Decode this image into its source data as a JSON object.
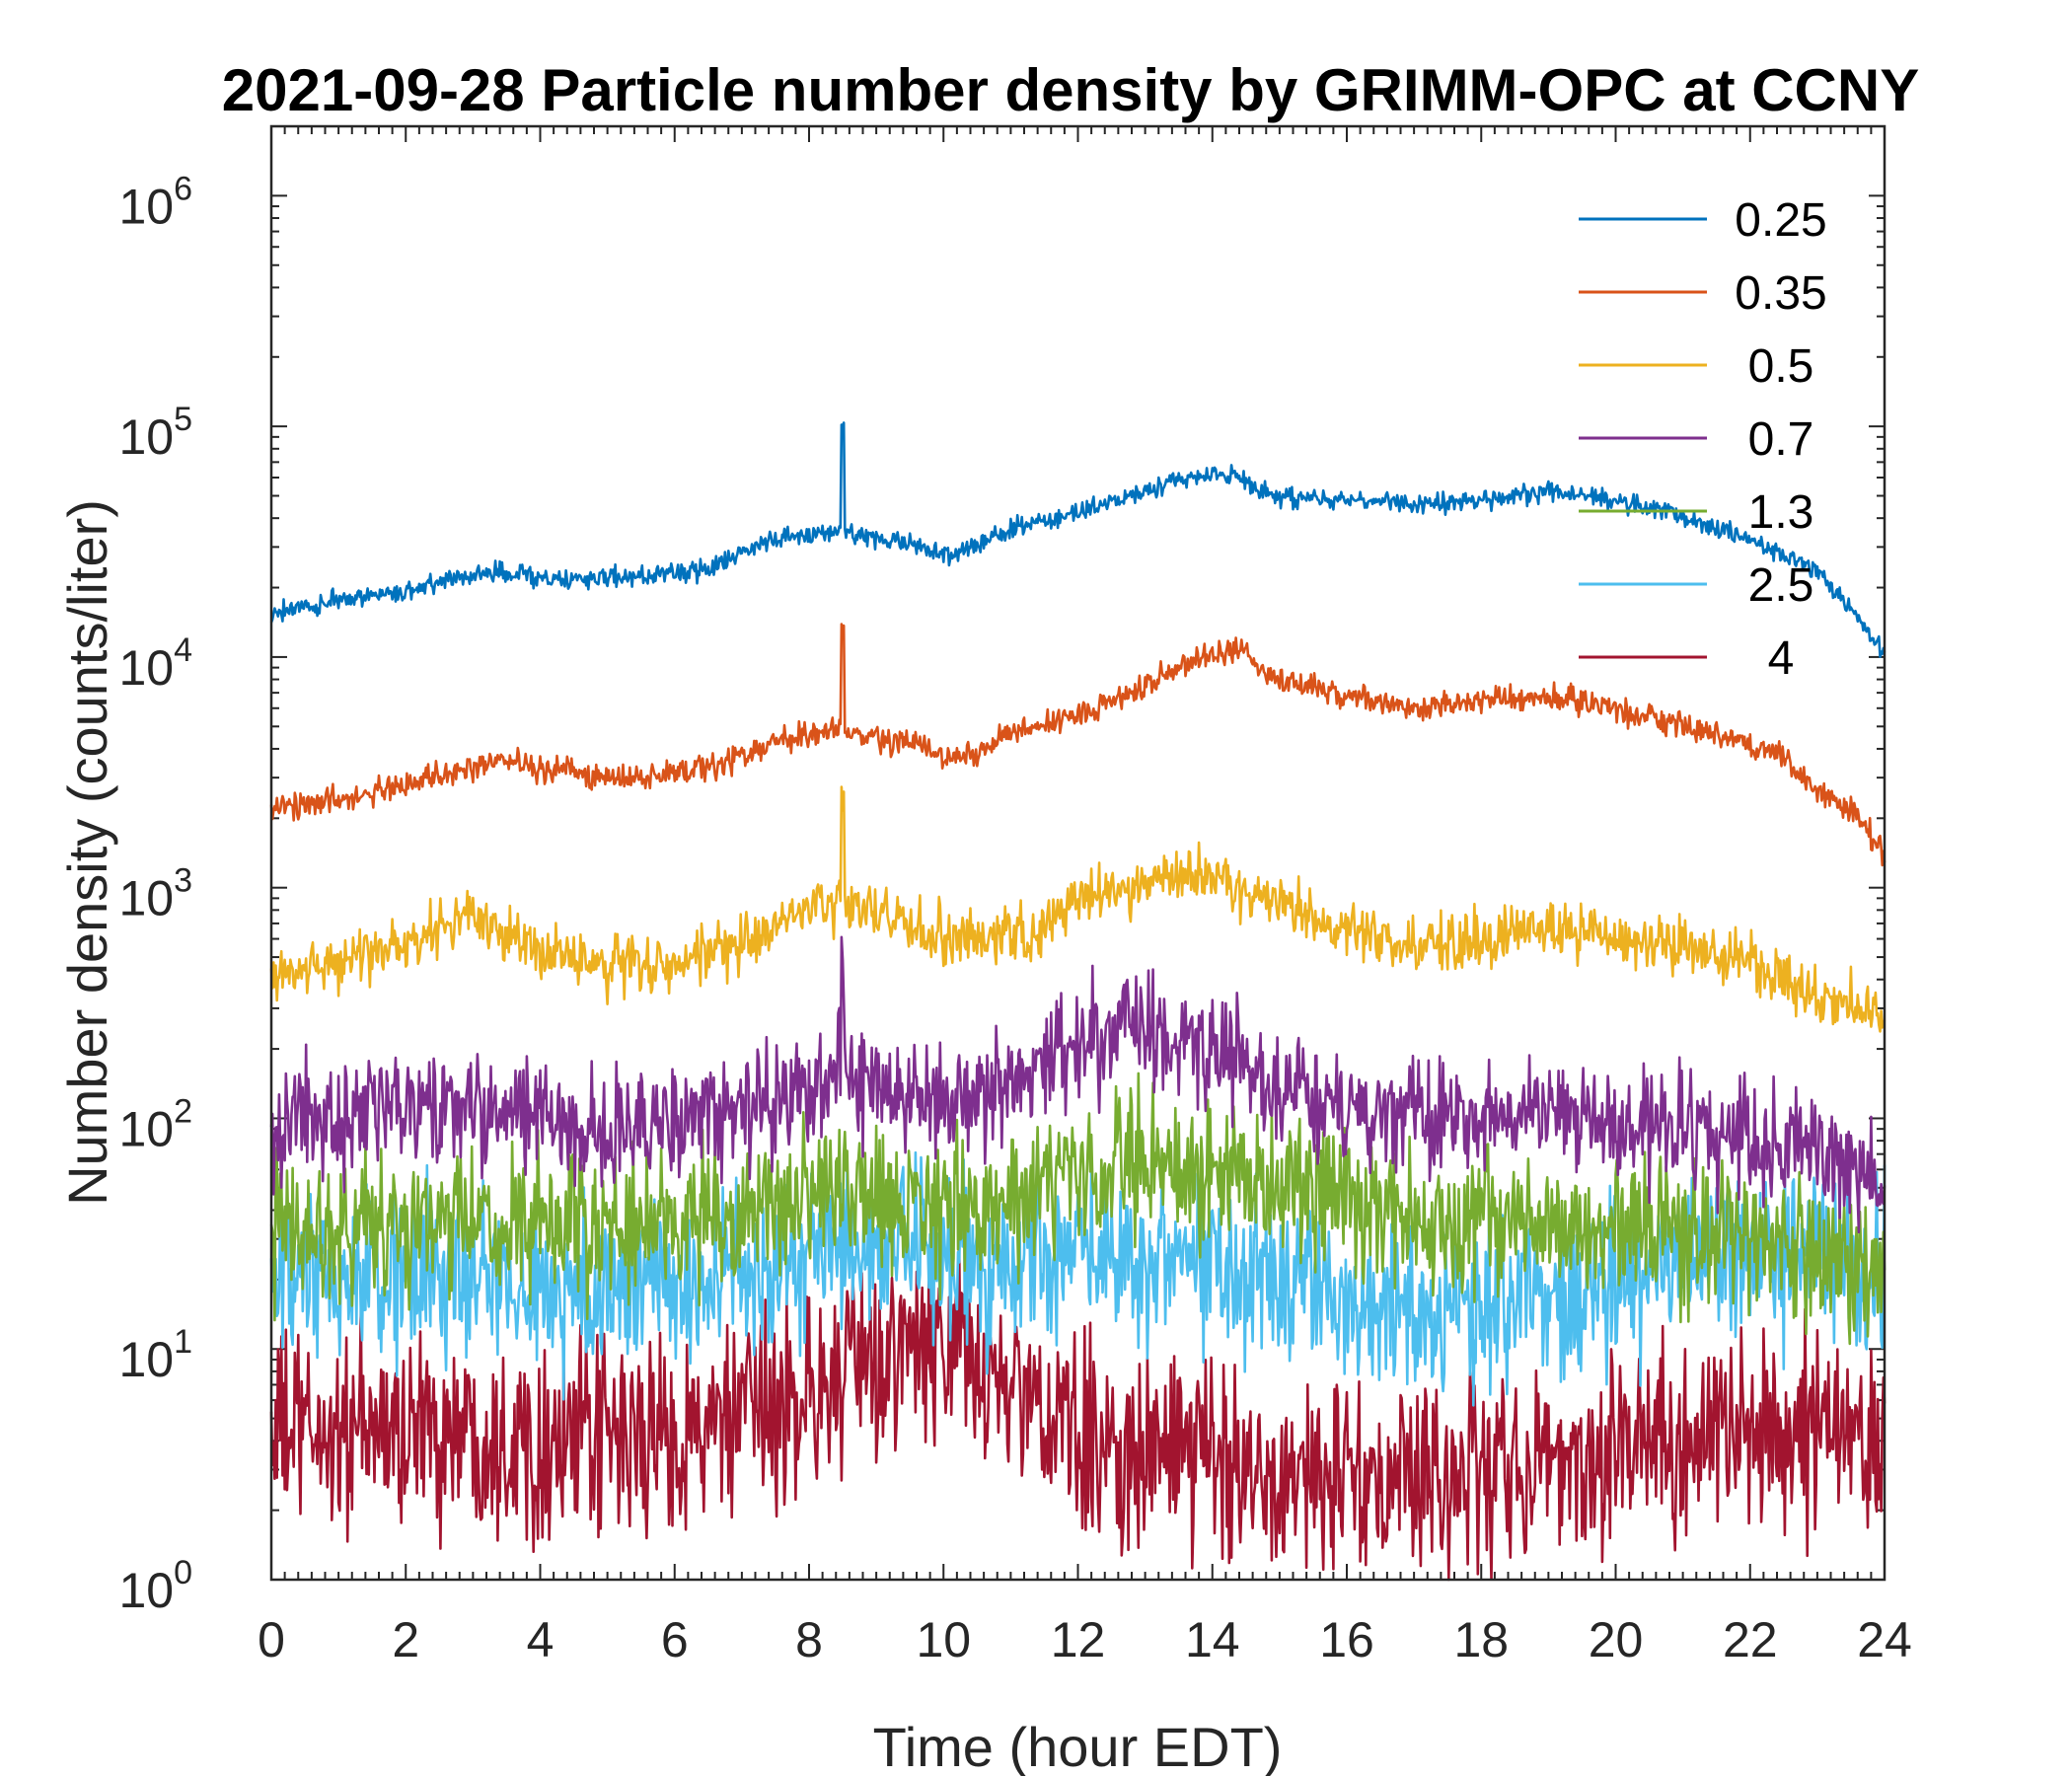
{
  "chart_data": {
    "type": "line",
    "title": "2021-09-28 Particle number density by GRIMM-OPC at CCNY",
    "xlabel": "Time (hour EDT)",
    "ylabel": "Number density (counts/liter)",
    "xlim": [
      0,
      24
    ],
    "ylim": [
      1,
      2000000
    ],
    "yscale": "log",
    "xticks": [
      0,
      2,
      4,
      6,
      8,
      10,
      12,
      14,
      16,
      18,
      20,
      22,
      24
    ],
    "yticks": [
      {
        "base": "10",
        "exp": "0",
        "value": 1
      },
      {
        "base": "10",
        "exp": "1",
        "value": 10
      },
      {
        "base": "10",
        "exp": "2",
        "value": 100
      },
      {
        "base": "10",
        "exp": "3",
        "value": 1000
      },
      {
        "base": "10",
        "exp": "4",
        "value": 10000
      },
      {
        "base": "10",
        "exp": "5",
        "value": 100000
      },
      {
        "base": "10",
        "exp": "6",
        "value": 1000000
      }
    ],
    "legend_position": "top-right",
    "series": [
      {
        "name": "0.25",
        "color": "#0072BD",
        "noise": 0.03,
        "x": [
          0,
          1,
          2,
          3,
          3.3,
          4,
          5,
          6,
          6.5,
          7,
          7.5,
          8,
          8.5,
          9,
          9.5,
          10,
          10.3,
          10.7,
          11,
          12,
          13,
          13.5,
          14,
          14.5,
          14.7,
          15,
          16,
          17,
          18,
          18.5,
          19,
          20,
          21,
          22,
          23,
          23.5,
          24
        ],
        "values": [
          15500,
          17500,
          19500,
          22500,
          24000,
          22000,
          22000,
          23000,
          24000,
          28000,
          32000,
          34000,
          35000,
          33000,
          31000,
          28000,
          29000,
          33000,
          36000,
          42000,
          53000,
          58000,
          62000,
          60000,
          52000,
          50000,
          48000,
          46000,
          48000,
          50000,
          52000,
          48000,
          41000,
          32000,
          24000,
          16000,
          10500
        ]
      },
      {
        "name": "0.35",
        "color": "#D95319",
        "noise": 0.04,
        "x": [
          0,
          1,
          2,
          3,
          3.3,
          4,
          5,
          6,
          7,
          7.5,
          8,
          8.5,
          9,
          9.5,
          10,
          10.5,
          11,
          12,
          13,
          13.5,
          14,
          14.5,
          14.7,
          15,
          16,
          17,
          18,
          19,
          20,
          21,
          22,
          22.5,
          23,
          23.5,
          24
        ],
        "values": [
          2200,
          2400,
          2800,
          3300,
          3600,
          3300,
          3000,
          3100,
          3700,
          4300,
          4600,
          4900,
          4500,
          4200,
          3700,
          3800,
          4700,
          5600,
          7500,
          9000,
          10500,
          11000,
          8500,
          8000,
          6700,
          6000,
          6300,
          6800,
          6000,
          5000,
          4100,
          3700,
          2600,
          2200,
          1400
        ]
      },
      {
        "name": "0.5",
        "color": "#EDB120",
        "noise": 0.09,
        "x": [
          0,
          1,
          2,
          3,
          4,
          5,
          6,
          7,
          7.5,
          8,
          8.5,
          9,
          10,
          10.5,
          11,
          11.5,
          12,
          13,
          13.5,
          14,
          14.5,
          15,
          16,
          17,
          18,
          19,
          20,
          21,
          22,
          22.5,
          23,
          23.5,
          24
        ],
        "values": [
          420,
          480,
          560,
          750,
          540,
          460,
          470,
          560,
          650,
          820,
          860,
          780,
          600,
          620,
          680,
          620,
          900,
          1050,
          1150,
          1150,
          950,
          850,
          640,
          580,
          590,
          680,
          590,
          560,
          480,
          420,
          330,
          310,
          260
        ]
      },
      {
        "name": "0.7",
        "color": "#7E2F8E",
        "noise": 0.18,
        "x": [
          0,
          1,
          2,
          3,
          4,
          5,
          6,
          7,
          8,
          8.5,
          9,
          10,
          11,
          11.5,
          12,
          12.5,
          13,
          14,
          15,
          16,
          17,
          18,
          19,
          20,
          21,
          22,
          23,
          24
        ],
        "values": [
          95,
          100,
          105,
          110,
          100,
          90,
          95,
          105,
          135,
          160,
          140,
          120,
          130,
          150,
          210,
          230,
          240,
          210,
          140,
          110,
          105,
          100,
          105,
          95,
          90,
          80,
          70,
          55
        ]
      },
      {
        "name": "1.3",
        "color": "#77AC30",
        "noise": 0.22,
        "x": [
          0,
          1,
          2,
          3,
          4,
          5,
          6,
          7,
          8,
          9,
          10,
          11,
          12,
          13,
          14,
          15,
          16,
          17,
          18,
          19,
          20,
          21,
          22,
          23,
          24
        ],
        "values": [
          32,
          34,
          36,
          34,
          32,
          33,
          35,
          38,
          45,
          45,
          40,
          42,
          58,
          65,
          60,
          48,
          42,
          38,
          38,
          36,
          35,
          32,
          30,
          27,
          22
        ]
      },
      {
        "name": "2.5",
        "color": "#4DBEEE",
        "noise": 0.26,
        "x": [
          0,
          1,
          2,
          3,
          4,
          5,
          6,
          7,
          8,
          9,
          10,
          11,
          12,
          13,
          14,
          15,
          16,
          17,
          18,
          19,
          20,
          21,
          22,
          23,
          24
        ],
        "values": [
          18,
          19,
          21,
          20,
          18,
          18,
          19,
          21,
          25,
          28,
          24,
          23,
          28,
          27,
          25,
          21,
          17,
          14,
          16,
          18,
          20,
          23,
          25,
          25,
          22
        ]
      },
      {
        "name": "4",
        "color": "#A2142F",
        "noise": 0.3,
        "x": [
          0,
          1,
          2,
          3,
          4,
          5,
          6,
          7,
          8,
          9,
          9.5,
          10,
          10.5,
          11,
          12,
          13,
          14,
          15,
          16,
          17,
          18,
          19,
          20,
          21,
          22,
          23,
          24
        ],
        "values": [
          4.5,
          4.2,
          4.5,
          4.5,
          4,
          4,
          4.2,
          4.8,
          6.5,
          8.5,
          10,
          10,
          8.5,
          6.5,
          4,
          3.5,
          3.5,
          3,
          2.6,
          2.6,
          3,
          3.2,
          3.8,
          4.2,
          4.4,
          4.4,
          4
        ]
      }
    ]
  }
}
